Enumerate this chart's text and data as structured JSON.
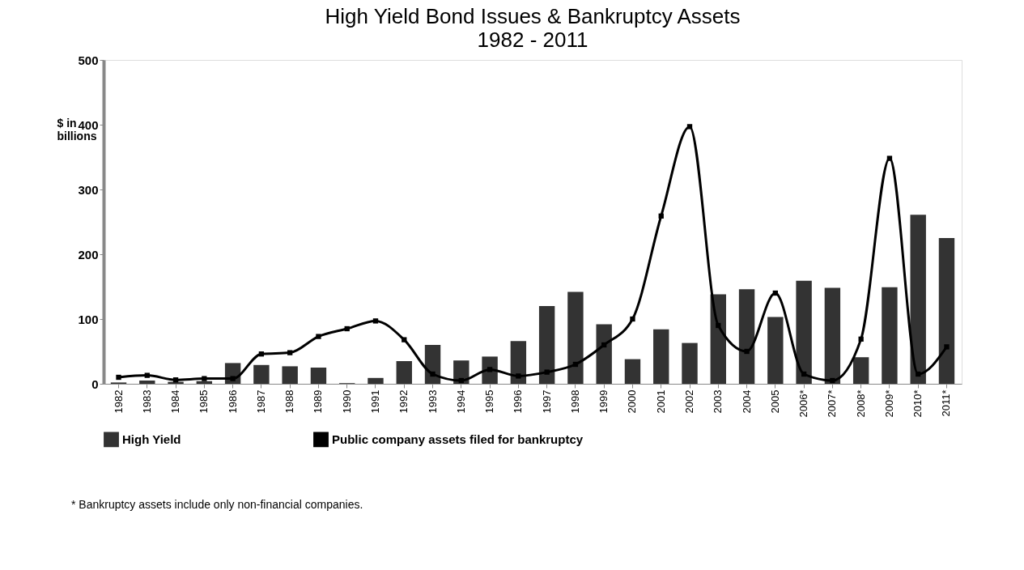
{
  "chart_data": {
    "type": "bar",
    "title": "High Yield Bond Issues & Bankruptcy Assets",
    "subtitle": "1982 - 2011",
    "ylabel": "$ in billions",
    "categories": [
      "1982",
      "1983",
      "1984",
      "1985",
      "1986",
      "1987",
      "1988",
      "1989",
      "1990",
      "1991",
      "1992",
      "1993",
      "1994",
      "1995",
      "1996",
      "1997",
      "1998",
      "1999",
      "2000",
      "2001",
      "2002",
      "2003",
      "2004",
      "2005",
      "2006*",
      "2007*",
      "2008*",
      "2009*",
      "2010*",
      "2011*"
    ],
    "series": [
      {
        "name": "High Yield",
        "color": "#333333",
        "values": [
          2,
          5,
          3,
          4,
          32,
          29,
          27,
          25,
          1,
          9,
          35,
          60,
          36,
          42,
          66,
          120,
          142,
          92,
          38,
          84,
          63,
          138,
          146,
          103,
          159,
          148,
          41,
          149,
          261,
          225
        ]
      },
      {
        "name": "Public company assets filed for bankruptcy",
        "type": "line",
        "color": "#000000",
        "values": [
          10,
          13,
          6,
          8,
          8,
          46,
          48,
          73,
          85,
          97,
          68,
          15,
          5,
          22,
          12,
          18,
          30,
          60,
          100,
          259,
          397,
          90,
          50,
          140,
          15,
          5,
          69,
          348,
          15,
          57
        ]
      }
    ],
    "ylim": [
      0,
      500
    ],
    "yticks": [
      0,
      100,
      200,
      300,
      400,
      500
    ],
    "grid": false,
    "legend": "bottom",
    "marker": "square",
    "line_style": "solid",
    "annotations": [
      "* Bankruptcy assets include only non-financial companies."
    ]
  }
}
